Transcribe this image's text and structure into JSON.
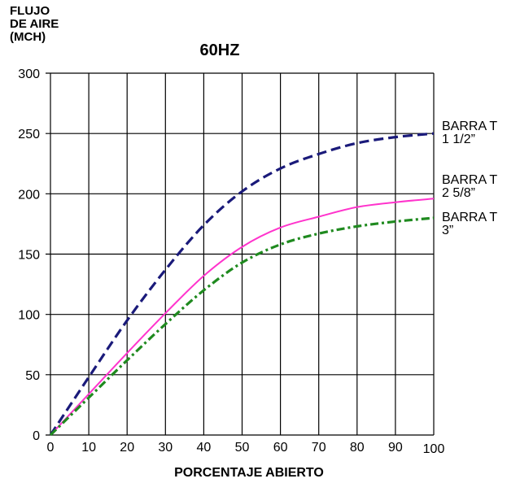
{
  "chart_data": {
    "type": "line",
    "title": "60HZ",
    "ylabel_lines": [
      "FLUJO",
      "DE AIRE",
      "(MCH)"
    ],
    "xlabel": "PORCENTAJE ABIERTO",
    "xlim": [
      0,
      100
    ],
    "ylim": [
      0,
      300
    ],
    "x_ticks": [
      0,
      10,
      20,
      30,
      40,
      50,
      60,
      70,
      80,
      90,
      100
    ],
    "y_ticks": [
      0,
      50,
      100,
      150,
      200,
      250,
      300
    ],
    "grid": true,
    "series": [
      {
        "name_lines": [
          "BARRA T",
          "1 1/2”"
        ],
        "color": "#1a1a7a",
        "style": "dashed",
        "x": [
          0,
          10,
          20,
          30,
          40,
          50,
          60,
          70,
          80,
          90,
          100
        ],
        "y": [
          0,
          48,
          95,
          137,
          174,
          202,
          221,
          233,
          242,
          247,
          250
        ]
      },
      {
        "name_lines": [
          "BARRA T",
          "2 5/8”"
        ],
        "color": "#ff33cc",
        "style": "solid",
        "x": [
          0,
          10,
          20,
          30,
          40,
          50,
          60,
          70,
          80,
          90,
          100
        ],
        "y": [
          0,
          34,
          68,
          101,
          132,
          156,
          172,
          181,
          189,
          193,
          196
        ]
      },
      {
        "name_lines": [
          "BARRA T",
          "3”"
        ],
        "color": "#1f8a1f",
        "style": "dashdot",
        "x": [
          0,
          10,
          20,
          30,
          40,
          50,
          60,
          70,
          80,
          90,
          100
        ],
        "y": [
          0,
          31,
          62,
          92,
          120,
          143,
          158,
          167,
          173,
          177,
          180
        ]
      }
    ]
  }
}
